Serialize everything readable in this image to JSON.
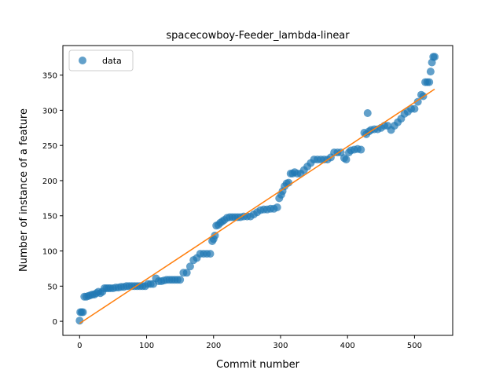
{
  "chart_data": {
    "type": "scatter",
    "title": "spacecowboy-Feeder_lambda-linear",
    "xlabel": "Commit number",
    "ylabel": "Number of instance of a feature",
    "xlim": [
      -25,
      557
    ],
    "ylim": [
      -20,
      392
    ],
    "xticks": [
      0,
      100,
      200,
      300,
      400,
      500
    ],
    "yticks": [
      0,
      50,
      100,
      150,
      200,
      250,
      300,
      350
    ],
    "grid": false,
    "legend_position": "top-left",
    "colors": {
      "data": "#1f77b4",
      "fit": "#ff7f0e"
    },
    "series": [
      {
        "name": "data",
        "kind": "scatter",
        "points": [
          [
            0,
            1
          ],
          [
            1,
            13
          ],
          [
            3,
            13
          ],
          [
            5,
            13
          ],
          [
            7,
            35
          ],
          [
            10,
            35
          ],
          [
            13,
            36
          ],
          [
            16,
            37
          ],
          [
            19,
            38
          ],
          [
            22,
            38
          ],
          [
            25,
            40
          ],
          [
            28,
            42
          ],
          [
            31,
            40
          ],
          [
            34,
            42
          ],
          [
            37,
            47
          ],
          [
            40,
            47
          ],
          [
            43,
            47
          ],
          [
            46,
            47
          ],
          [
            50,
            47
          ],
          [
            54,
            48
          ],
          [
            58,
            48
          ],
          [
            62,
            49
          ],
          [
            66,
            49
          ],
          [
            70,
            50
          ],
          [
            74,
            50
          ],
          [
            78,
            50
          ],
          [
            82,
            50
          ],
          [
            86,
            50
          ],
          [
            90,
            50
          ],
          [
            94,
            50
          ],
          [
            98,
            50
          ],
          [
            102,
            53
          ],
          [
            106,
            53
          ],
          [
            110,
            53
          ],
          [
            114,
            61
          ],
          [
            118,
            57
          ],
          [
            122,
            57
          ],
          [
            126,
            58
          ],
          [
            130,
            59
          ],
          [
            134,
            59
          ],
          [
            138,
            59
          ],
          [
            142,
            59
          ],
          [
            146,
            59
          ],
          [
            150,
            59
          ],
          [
            155,
            69
          ],
          [
            160,
            69
          ],
          [
            165,
            78
          ],
          [
            170,
            87
          ],
          [
            175,
            90
          ],
          [
            180,
            96
          ],
          [
            185,
            96
          ],
          [
            190,
            96
          ],
          [
            195,
            96
          ],
          [
            198,
            114
          ],
          [
            200,
            117
          ],
          [
            202,
            122
          ],
          [
            204,
            136
          ],
          [
            207,
            137
          ],
          [
            210,
            140
          ],
          [
            213,
            142
          ],
          [
            216,
            144
          ],
          [
            220,
            147
          ],
          [
            224,
            148
          ],
          [
            228,
            148
          ],
          [
            232,
            148
          ],
          [
            236,
            148
          ],
          [
            240,
            148
          ],
          [
            245,
            149
          ],
          [
            250,
            149
          ],
          [
            255,
            149
          ],
          [
            260,
            152
          ],
          [
            265,
            155
          ],
          [
            270,
            158
          ],
          [
            275,
            159
          ],
          [
            280,
            159
          ],
          [
            285,
            160
          ],
          [
            290,
            160
          ],
          [
            295,
            162
          ],
          [
            298,
            175
          ],
          [
            301,
            180
          ],
          [
            303,
            185
          ],
          [
            306,
            192
          ],
          [
            309,
            196
          ],
          [
            312,
            197
          ],
          [
            315,
            210
          ],
          [
            318,
            210
          ],
          [
            321,
            212
          ],
          [
            325,
            210
          ],
          [
            330,
            210
          ],
          [
            335,
            215
          ],
          [
            340,
            220
          ],
          [
            345,
            225
          ],
          [
            350,
            230
          ],
          [
            355,
            230
          ],
          [
            360,
            230
          ],
          [
            365,
            230
          ],
          [
            370,
            230
          ],
          [
            375,
            233
          ],
          [
            380,
            240
          ],
          [
            385,
            240
          ],
          [
            390,
            240
          ],
          [
            395,
            232
          ],
          [
            398,
            230
          ],
          [
            402,
            240
          ],
          [
            405,
            243
          ],
          [
            410,
            244
          ],
          [
            415,
            245
          ],
          [
            420,
            244
          ],
          [
            425,
            268
          ],
          [
            428,
            266
          ],
          [
            430,
            296
          ],
          [
            432,
            270
          ],
          [
            435,
            272
          ],
          [
            440,
            273
          ],
          [
            445,
            273
          ],
          [
            450,
            275
          ],
          [
            455,
            278
          ],
          [
            460,
            278
          ],
          [
            465,
            272
          ],
          [
            470,
            278
          ],
          [
            475,
            283
          ],
          [
            480,
            288
          ],
          [
            485,
            295
          ],
          [
            490,
            298
          ],
          [
            495,
            302
          ],
          [
            500,
            302
          ],
          [
            505,
            312
          ],
          [
            510,
            322
          ],
          [
            513,
            320
          ],
          [
            516,
            340
          ],
          [
            519,
            340
          ],
          [
            522,
            340
          ],
          [
            524,
            355
          ],
          [
            526,
            368
          ],
          [
            528,
            376
          ],
          [
            530,
            376
          ]
        ]
      },
      {
        "name": "",
        "kind": "line",
        "points": [
          [
            0,
            -3
          ],
          [
            530,
            330
          ]
        ]
      }
    ]
  }
}
